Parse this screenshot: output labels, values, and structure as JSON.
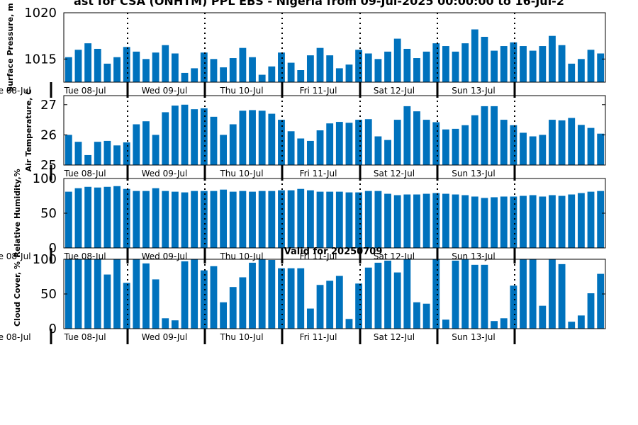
{
  "title": "ast for CSA (ONHTM) PPL EBS  - Nigeria from 09-Jul-2025 00:00:00 to 16-Jul-2",
  "valid_label": "Valid for 20250709",
  "colors": {
    "bar": "#0072bd",
    "axis": "#000000",
    "background": "#ffffff"
  },
  "chart_data": [
    {
      "type": "bar",
      "ylabel": "Surface Pressure, m",
      "ylim": [
        1012.5,
        1020
      ],
      "yticks": [
        1015,
        1020
      ],
      "xticks": [
        "Tue 08-Jul",
        "Tue 08-Jul",
        "Wed 09-Jul",
        "Thu 10-Jul",
        "Fri 11-Jul",
        "Sat 12-Jul",
        "Sun 13-Jul"
      ],
      "values": [
        1015.2,
        1016.0,
        1016.7,
        1016.1,
        1014.5,
        1015.2,
        1016.3,
        1015.8,
        1015.0,
        1015.7,
        1016.5,
        1015.6,
        1013.5,
        1014.0,
        1015.7,
        1015.0,
        1014.1,
        1015.1,
        1016.2,
        1015.2,
        1013.3,
        1014.2,
        1015.7,
        1014.6,
        1013.8,
        1015.4,
        1016.2,
        1015.4,
        1014.0,
        1014.4,
        1016.0,
        1015.6,
        1015.0,
        1015.8,
        1017.2,
        1016.1,
        1015.1,
        1015.8,
        1016.7,
        1016.4,
        1015.8,
        1016.7,
        1018.2,
        1017.4,
        1015.9,
        1016.4,
        1016.8,
        1016.4,
        1015.9,
        1016.4,
        1017.5,
        1016.5,
        1014.5,
        1015.0,
        1016.0,
        1015.6
      ]
    },
    {
      "type": "bar",
      "ylabel": "Air Temperature, C",
      "ylim": [
        25,
        27.3
      ],
      "yticks": [
        25,
        26,
        27
      ],
      "xticks": [
        "Tue 08-Jul",
        "Wed 09-Jul",
        "Thu 10-Jul",
        "Fri 11-Jul",
        "Sat 12-Jul",
        "Sun 13-Jul"
      ],
      "values": [
        26.0,
        25.77,
        25.33,
        25.77,
        25.8,
        25.65,
        25.75,
        26.35,
        26.45,
        26.0,
        26.75,
        26.97,
        27.0,
        26.85,
        26.88,
        26.6,
        26.0,
        26.35,
        26.8,
        26.82,
        26.8,
        26.7,
        26.5,
        26.12,
        25.88,
        25.8,
        26.15,
        26.38,
        26.43,
        26.4,
        26.5,
        26.52,
        25.95,
        25.83,
        26.5,
        26.95,
        26.78,
        26.5,
        26.42,
        26.18,
        26.2,
        26.32,
        26.65,
        26.95,
        26.95,
        26.5,
        26.32,
        26.07,
        25.95,
        26.0,
        26.5,
        26.48,
        26.56,
        26.33,
        26.23,
        26.04
      ]
    },
    {
      "type": "bar",
      "ylabel": "Relative Humidity,%",
      "ylim": [
        0,
        100
      ],
      "yticks": [
        0,
        50,
        100
      ],
      "xticks": [
        "Tue 08-Jul",
        "Tue 08-Jul",
        "Wed 09-Jul",
        "Thu 10-Jul",
        "Fri 11-Jul",
        "Sat 12-Jul",
        "Sun 13-Jul"
      ],
      "values": [
        81,
        86,
        88,
        87,
        88,
        89,
        85,
        82,
        82,
        86,
        82,
        81,
        80,
        82,
        82,
        82,
        84,
        81,
        82,
        81,
        82,
        82,
        83,
        83,
        85,
        83,
        81,
        81,
        81,
        80,
        80,
        82,
        82,
        78,
        76,
        77,
        77,
        78,
        79,
        78,
        77,
        76,
        74,
        72,
        73,
        74,
        74,
        75,
        76,
        74,
        76,
        75,
        77,
        79,
        81,
        82
      ]
    },
    {
      "type": "bar",
      "ylabel": "Cloud Cover, %",
      "ylim": [
        0,
        100
      ],
      "yticks": [
        0,
        50,
        100
      ],
      "xticks": [
        "Tue 08-Jul",
        "Tue 08-Jul",
        "Wed 09-Jul",
        "Thu 10-Jul",
        "Fri 11-Jul",
        "Sat 12-Jul",
        "Sun 13-Jul"
      ],
      "values": [
        100,
        100,
        100,
        100,
        78,
        100,
        66,
        100,
        94,
        71,
        15,
        12,
        97,
        100,
        84,
        90,
        38,
        60,
        74,
        95,
        100,
        99,
        87,
        87,
        87,
        29,
        63,
        69,
        76,
        14,
        65,
        88,
        95,
        98,
        81,
        100,
        38,
        36,
        100,
        13,
        98,
        100,
        92,
        92,
        11,
        15,
        62,
        100,
        100,
        33,
        100,
        93,
        10,
        19,
        51,
        79
      ]
    }
  ]
}
